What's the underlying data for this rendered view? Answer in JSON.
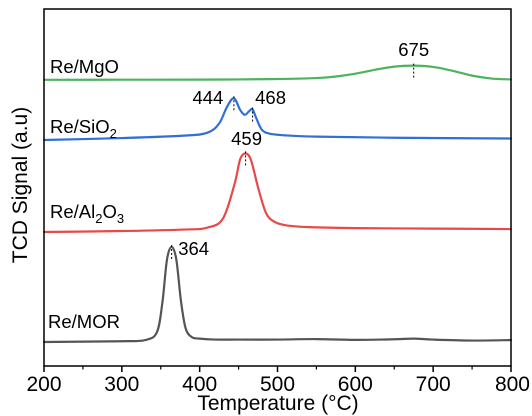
{
  "chart_data": {
    "type": "line",
    "xlabel": "Temperature (°C)",
    "ylabel": "TCD Signal (a.u)",
    "xlim": [
      200,
      800
    ],
    "xticks": [
      200,
      300,
      400,
      500,
      600,
      700,
      800
    ],
    "yticks": false,
    "grid": false,
    "legend": "none (series labeled inline, left side)",
    "series": [
      {
        "name": "Re/MgO",
        "color": "#4db35f",
        "x": [
          200,
          300,
          400,
          450,
          500,
          550,
          575,
          600,
          625,
          650,
          675,
          700,
          725,
          750,
          775,
          800
        ],
        "y": [
          0.2,
          0.3,
          0.4,
          0.6,
          1.0,
          2.0,
          3.6,
          6.5,
          10.5,
          13.8,
          14.8,
          13.5,
          9.5,
          4.5,
          1.5,
          0.6
        ],
        "peaks": [
          {
            "x": 675,
            "label": "675"
          }
        ]
      },
      {
        "name": "Re/SiO2",
        "label_main": "Re/SiO",
        "label_sub": "2",
        "color": "#2f6fd6",
        "x": [
          200,
          300,
          380,
          410,
          425,
          435,
          444,
          452,
          458,
          464,
          468,
          473,
          480,
          490,
          510,
          550,
          650,
          800
        ],
        "y": [
          0.0,
          2.0,
          4.5,
          7.5,
          17.0,
          34.0,
          43.0,
          31.0,
          26.0,
          30.0,
          31.5,
          22.0,
          10.5,
          6.5,
          4.8,
          3.5,
          2.3,
          1.5
        ],
        "peaks": [
          {
            "x": 444,
            "label": "444"
          },
          {
            "x": 468,
            "label": "468"
          }
        ]
      },
      {
        "name": "Re/Al2O3",
        "label_main": "Re/Al",
        "label_sub1": "2",
        "label_mid": "O",
        "label_sub2": "3",
        "color": "#e84848",
        "x": [
          200,
          300,
          380,
          410,
          430,
          445,
          452,
          459,
          466,
          475,
          485,
          495,
          510,
          540,
          600,
          700,
          800
        ],
        "y": [
          0.0,
          1.0,
          2.5,
          4.5,
          14.0,
          50.0,
          75.0,
          81.0,
          74.0,
          46.0,
          20.0,
          11.0,
          7.0,
          5.0,
          4.0,
          3.5,
          3.0
        ],
        "peaks": [
          {
            "x": 459,
            "label": "459"
          }
        ]
      },
      {
        "name": "Re/MOR",
        "color": "#555555",
        "x": [
          200,
          300,
          330,
          345,
          352,
          358,
          364,
          370,
          376,
          382,
          390,
          400,
          420,
          450,
          500,
          550,
          600,
          650,
          675,
          700,
          750,
          800
        ],
        "y": [
          0.0,
          0.8,
          2.0,
          10.0,
          40.0,
          85.0,
          98.0,
          85.0,
          42.0,
          14.0,
          5.0,
          3.5,
          2.5,
          2.5,
          2.5,
          3.0,
          2.2,
          2.8,
          3.5,
          2.5,
          1.5,
          2.0
        ],
        "peaks": [
          {
            "x": 364,
            "label": "364"
          }
        ]
      }
    ]
  }
}
